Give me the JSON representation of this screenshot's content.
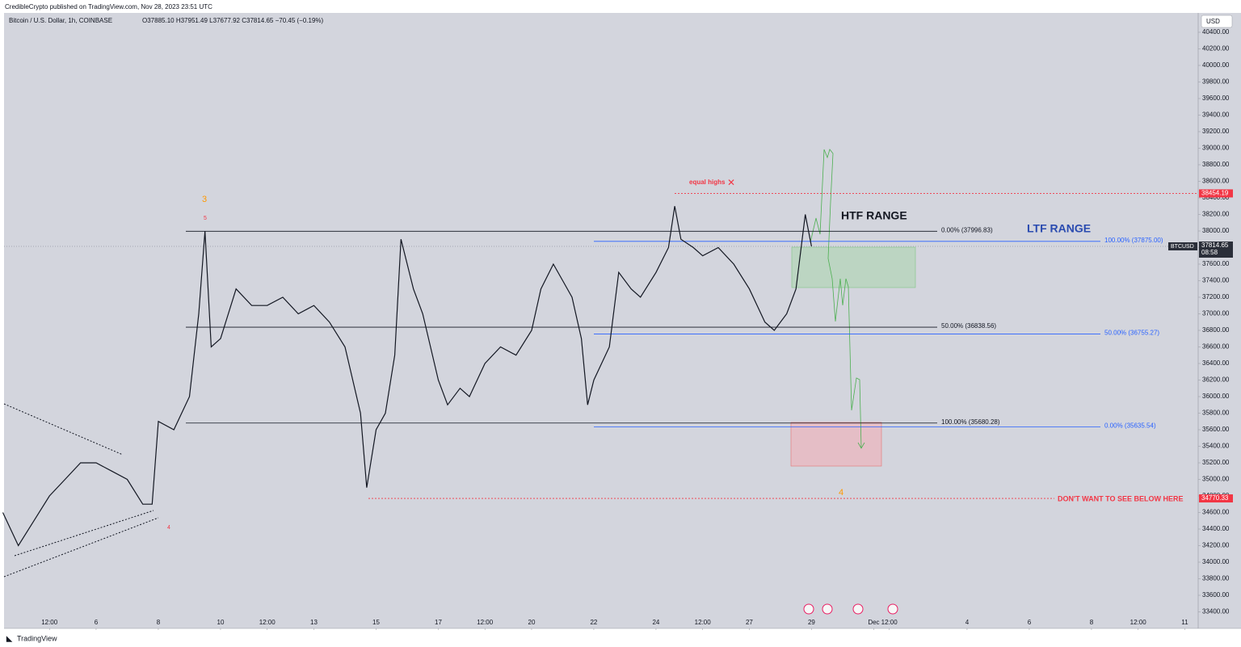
{
  "header": "CredibleCrypto published on TradingView.com, Nov 28, 2023 23:51 UTC",
  "footer": "TradingView",
  "chart_data": {
    "type": "line",
    "title": "Bitcoin / U.S. Dollar, 1h, COINBASE",
    "ohlc": "O37885.10 H37951.49 L37677.92 C37814.65 −70.45 (−0.19%)",
    "currency": "USD",
    "color": "#131722",
    "x": [
      3.0,
      3.5,
      4.0,
      4.5,
      5.0,
      5.5,
      6.0,
      6.5,
      7.0,
      7.5,
      7.8,
      8.0,
      8.5,
      9.0,
      9.3,
      9.5,
      9.7,
      10.0,
      10.5,
      11.0,
      11.5,
      12.0,
      12.5,
      13.0,
      13.5,
      14.0,
      14.5,
      14.7,
      15.0,
      15.3,
      15.6,
      15.8,
      16.2,
      16.5,
      17.0,
      17.3,
      17.7,
      18.0,
      18.5,
      19.0,
      19.5,
      20.0,
      20.3,
      20.7,
      21.0,
      21.3,
      21.6,
      21.8,
      22.0,
      22.5,
      22.8,
      23.2,
      23.5,
      24.0,
      24.4,
      24.6,
      24.8,
      25.2,
      25.5,
      26.0,
      26.5,
      27.0,
      27.5,
      27.8,
      28.2,
      28.5,
      28.8,
      29.0
    ],
    "values": [
      34600,
      34200,
      34500,
      34800,
      35000,
      35200,
      35200,
      35100,
      35000,
      34700,
      34700,
      35700,
      35600,
      36000,
      37000,
      38000,
      36600,
      36700,
      37300,
      37100,
      37100,
      37200,
      37000,
      37100,
      36900,
      36600,
      35800,
      34900,
      35600,
      35800,
      36500,
      37900,
      37300,
      37000,
      36200,
      35900,
      36100,
      36000,
      36400,
      36600,
      36500,
      36800,
      37300,
      37600,
      37400,
      37200,
      36700,
      35900,
      36200,
      36600,
      37500,
      37300,
      37200,
      37500,
      37800,
      38300,
      37900,
      37800,
      37700,
      37800,
      37600,
      37300,
      36900,
      36800,
      37000,
      37300,
      38200,
      37815
    ],
    "xlim": [
      3.04,
      41.43
    ],
    "xticks": [
      {
        "value": 4.5,
        "label": "12:00"
      },
      6,
      8,
      10,
      {
        "value": 11.5,
        "label": "12:00"
      },
      13,
      15,
      17,
      {
        "value": 18.5,
        "label": "12:00"
      },
      20,
      22,
      24,
      {
        "value": 25.5,
        "label": "12:00"
      },
      27,
      29,
      {
        "value": 31,
        "label": "Dec"
      },
      {
        "value": 31.5,
        "label": "12:00"
      },
      {
        "value": 34,
        "label": "4"
      },
      {
        "value": 36,
        "label": "6"
      },
      {
        "value": 38,
        "label": "8"
      },
      {
        "value": 39.5,
        "label": "12:00"
      },
      {
        "value": 41,
        "label": "11"
      }
    ],
    "ylim": [
      33200,
      40634
    ],
    "yticks": [
      {
        "value": 40400,
        "label": "40400.00"
      },
      {
        "value": 40200,
        "label": "40200.00"
      },
      {
        "value": 40000,
        "label": "40000.00"
      },
      {
        "value": 39800,
        "label": "39800.00"
      },
      {
        "value": 39600,
        "label": "39600.00"
      },
      {
        "value": 39400,
        "label": "39400.00"
      },
      {
        "value": 39200,
        "label": "39200.00"
      },
      {
        "value": 39000,
        "label": "39000.00"
      },
      {
        "value": 38800,
        "label": "38800.00"
      },
      {
        "value": 38600,
        "label": "38600.00"
      },
      {
        "value": 38400,
        "label": "38400.00"
      },
      {
        "value": 38200,
        "label": "38200.00"
      },
      {
        "value": 38000,
        "label": "38000.00"
      },
      {
        "value": 37800,
        "label": "37800.00"
      },
      {
        "value": 37600,
        "label": "37600.00"
      },
      {
        "value": 37400,
        "label": "37400.00"
      },
      {
        "value": 37200,
        "label": "37200.00"
      },
      {
        "value": 37000,
        "label": "37000.00"
      },
      {
        "value": 36800,
        "label": "36800.00"
      },
      {
        "value": 36600,
        "label": "36600.00"
      },
      {
        "value": 36400,
        "label": "36400.00"
      },
      {
        "value": 36200,
        "label": "36200.00"
      },
      {
        "value": 36000,
        "label": "36000.00"
      },
      {
        "value": 35800,
        "label": "35800.00"
      },
      {
        "value": 35600,
        "label": "35600.00"
      },
      {
        "value": 35400,
        "label": "35400.00"
      },
      {
        "value": 35200,
        "label": "35200.00"
      },
      {
        "value": 35000,
        "label": "35000.00"
      },
      {
        "value": 34800,
        "label": "34800.00"
      },
      {
        "value": 34600,
        "label": "34600.00"
      },
      {
        "value": 34400,
        "label": "34400.00"
      },
      {
        "value": 34200,
        "label": "34200.00"
      },
      {
        "value": 34000,
        "label": "34000.00"
      },
      {
        "value": 33800,
        "label": "33800.00"
      },
      {
        "value": 33600,
        "label": "33600.00"
      },
      {
        "value": 33400,
        "label": "33400.00"
      }
    ],
    "grid": false,
    "last": {
      "symbol": "BTCUSD",
      "price": 37814.65,
      "countdown": "08:58"
    },
    "levels": [
      {
        "label": "0.00% (37996.83)",
        "value": 37996.83,
        "color": "#131722"
      },
      {
        "label": "50.00% (36838.56)",
        "value": 36838.56,
        "color": "#131722"
      },
      {
        "label": "100.00% (35680.28)",
        "value": 35680.28,
        "color": "#131722"
      },
      {
        "label": "100.00% (37875.00)",
        "value": 37875.0,
        "color": "#2962ff"
      },
      {
        "label": "50.00% (36755.27)",
        "value": 36755.27,
        "color": "#2962ff"
      },
      {
        "label": "0.00% (35635.54)",
        "value": 35635.54,
        "color": "#2962ff"
      },
      {
        "label": "38454.19",
        "value": 38454.19,
        "color": "#f23645"
      },
      {
        "label": "34770.33",
        "value": 34770.33,
        "color": "#f23645"
      }
    ],
    "annotations": [
      "equal highs",
      "HTF RANGE",
      "LTF RANGE",
      "DON'T WANT TO SEE BELOW HERE",
      "3",
      "5",
      "4",
      "4"
    ]
  }
}
